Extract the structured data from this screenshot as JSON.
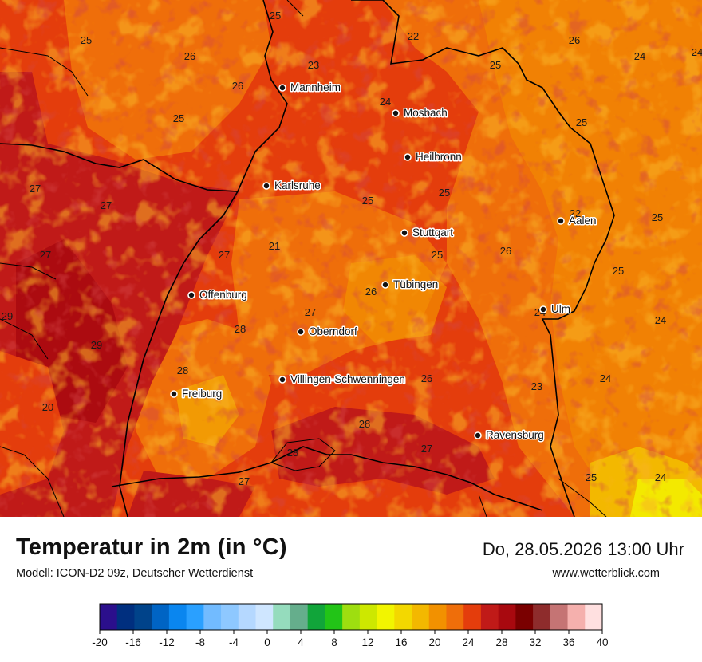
{
  "map": {
    "cities": [
      {
        "name": "Mannheim"
      },
      {
        "name": "Mosbach"
      },
      {
        "name": "Heilbronn"
      },
      {
        "name": "Karlsruhe"
      },
      {
        "name": "Stuttgart"
      },
      {
        "name": "Aalen"
      },
      {
        "name": "Tübingen"
      },
      {
        "name": "Offenburg"
      },
      {
        "name": "Ulm"
      },
      {
        "name": "Oberndorf"
      },
      {
        "name": "Villingen-Schwenningen"
      },
      {
        "name": "Freiburg"
      },
      {
        "name": "Ravensburg"
      }
    ],
    "value_labels": [
      "25",
      "25",
      "22",
      "26",
      "26",
      "23",
      "25",
      "24",
      "24",
      "26",
      "24",
      "25",
      "25",
      "27",
      "27",
      "27",
      "27",
      "21",
      "25",
      "25",
      "25",
      "22",
      "25",
      "26",
      "26",
      "25",
      "29",
      "27",
      "24",
      "24",
      "29",
      "28",
      "24",
      "23",
      "26",
      "20",
      "28",
      "27",
      "28",
      "28",
      "25",
      "24",
      "27"
    ]
  },
  "header": {
    "title": "Temperatur in 2m (in °C)",
    "subtitle": "Modell: ICON-D2 09z, Deutscher Wetterdienst",
    "datetime": "Do, 28.05.2026 13:00 Uhr",
    "website": "www.wetterblick.com"
  },
  "legend": {
    "ticks": [
      "-20",
      "-16",
      "-12",
      "-8",
      "-4",
      "0",
      "4",
      "8",
      "12",
      "16",
      "20",
      "24",
      "28",
      "32",
      "36",
      "40"
    ],
    "colors": [
      "#2b0f8c",
      "#002f7f",
      "#00438a",
      "#0064c4",
      "#0a86ef",
      "#2aa0ff",
      "#72bbff",
      "#8ec8ff",
      "#b5d8ff",
      "#cfe6ff",
      "#95dcbd",
      "#65ae8c",
      "#11a53a",
      "#22c417",
      "#9ede10",
      "#cde800",
      "#f2f500",
      "#f3d800",
      "#f3b800",
      "#f29100",
      "#ef6e0a",
      "#e43d0c",
      "#c01a18",
      "#a8090f",
      "#7a0000",
      "#8e2c2c",
      "#c57474",
      "#f5b0ad",
      "#ffe0e0"
    ]
  }
}
